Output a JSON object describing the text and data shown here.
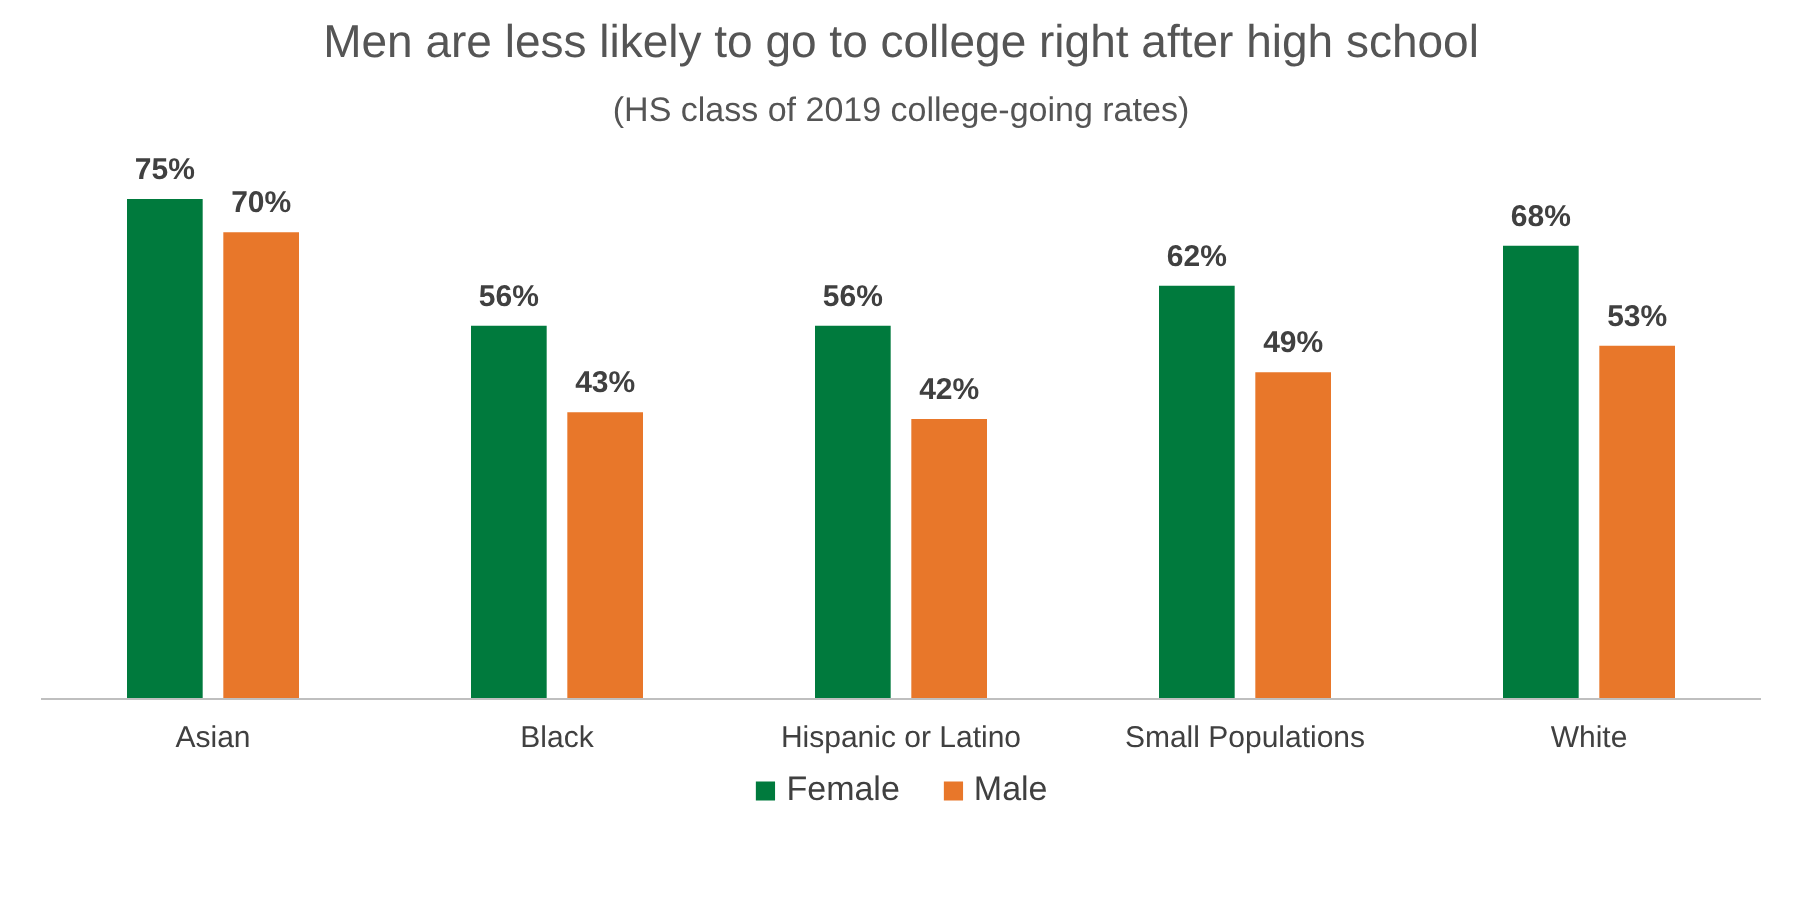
{
  "chart_data": {
    "type": "bar",
    "title": "Men are less likely to go to college right after high school",
    "subtitle": "(HS class of 2019 college-going rates)",
    "categories": [
      "Asian",
      "Black",
      "Hispanic or Latino",
      "Small Populations",
      "White"
    ],
    "series": [
      {
        "name": "Female",
        "color": "#007a3d",
        "values": [
          75,
          56,
          56,
          62,
          68
        ],
        "value_labels": [
          "75%",
          "56%",
          "56%",
          "62%",
          "68%"
        ]
      },
      {
        "name": "Male",
        "color": "#e8772a",
        "values": [
          70,
          43,
          42,
          49,
          53
        ],
        "value_labels": [
          "70%",
          "43%",
          "42%",
          "49%",
          "53%"
        ]
      }
    ],
    "legend": "bottom"
  }
}
